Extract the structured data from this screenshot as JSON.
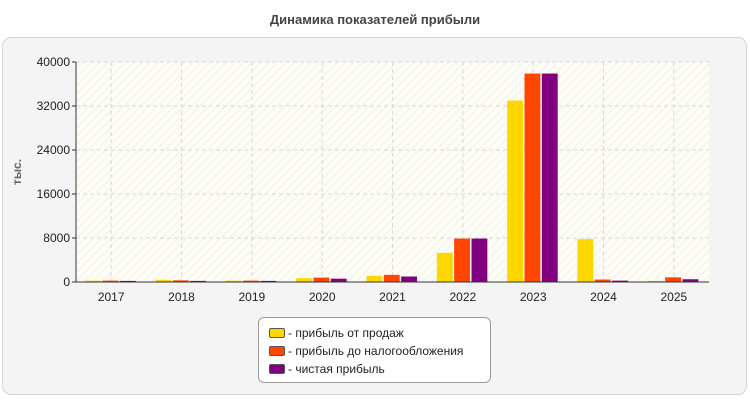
{
  "chart_data": {
    "type": "bar",
    "title": "Динамика показателей прибыли",
    "ylabel": "тыс.",
    "xlabel": "",
    "categories": [
      "2017",
      "2018",
      "2019",
      "2020",
      "2021",
      "2022",
      "2023",
      "2024",
      "2025"
    ],
    "ylim": [
      0,
      40000
    ],
    "yticks": [
      0,
      8000,
      16000,
      24000,
      32000,
      40000
    ],
    "grid": true,
    "legend_position": "bottom-center",
    "series": [
      {
        "name": "- прибыль от продаж",
        "color": "#FFD700",
        "values": [
          250,
          400,
          250,
          700,
          1100,
          5300,
          33000,
          7800,
          200
        ]
      },
      {
        "name": "- прибыль до налогообложения",
        "color": "#FF4500",
        "values": [
          250,
          300,
          250,
          800,
          1300,
          7900,
          37900,
          450,
          850
        ]
      },
      {
        "name": "- чистая прибыль",
        "color": "#800080",
        "values": [
          200,
          200,
          200,
          600,
          1000,
          7900,
          37900,
          250,
          500
        ]
      }
    ]
  }
}
